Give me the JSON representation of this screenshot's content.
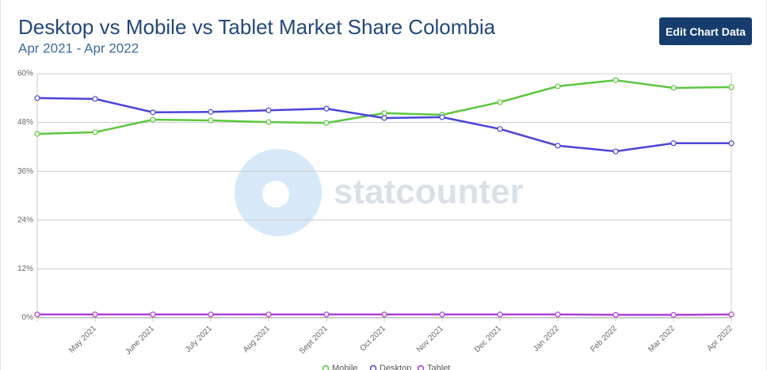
{
  "chart_data": {
    "type": "line",
    "title": "Desktop vs Mobile vs Tablet Market Share Colombia",
    "subtitle": "Apr 2021 - Apr 2022",
    "categories": [
      null,
      "May 2021",
      "June 2021",
      "July 2021",
      "Aug 2021",
      "Sept 2021",
      "Oct 2021",
      "Nov 2021",
      "Dec 2021",
      "Jan 2022",
      "Feb 2022",
      "Mar 2022",
      "Apr 2022"
    ],
    "series": [
      {
        "name": "Mobile",
        "color": "#5cc73f",
        "values": [
          45.2,
          45.6,
          48.7,
          48.5,
          48.1,
          47.9,
          50.3,
          49.9,
          53.0,
          56.9,
          58.4,
          56.5,
          56.7
        ]
      },
      {
        "name": "Desktop",
        "color": "#4a45d8",
        "values": [
          54.0,
          53.8,
          50.5,
          50.6,
          51.0,
          51.4,
          49.1,
          49.3,
          46.4,
          42.3,
          40.9,
          42.9,
          42.9
        ]
      },
      {
        "name": "Tablet",
        "color": "#b03fd6",
        "values": [
          0.8,
          0.8,
          0.8,
          0.8,
          0.8,
          0.8,
          0.8,
          0.8,
          0.8,
          0.8,
          0.7,
          0.7,
          0.8
        ]
      }
    ],
    "ylim": [
      0,
      60
    ],
    "yticks": [
      {
        "value": 0,
        "label": "0%"
      },
      {
        "value": 12,
        "label": "12%"
      },
      {
        "value": 24,
        "label": "24%"
      },
      {
        "value": 36,
        "label": "36%"
      },
      {
        "value": 48,
        "label": "48%"
      },
      {
        "value": 60,
        "label": "60%"
      }
    ],
    "grid": true,
    "legend": "bottom"
  },
  "button": "Edit Chart Data",
  "watermark": "statcounter"
}
